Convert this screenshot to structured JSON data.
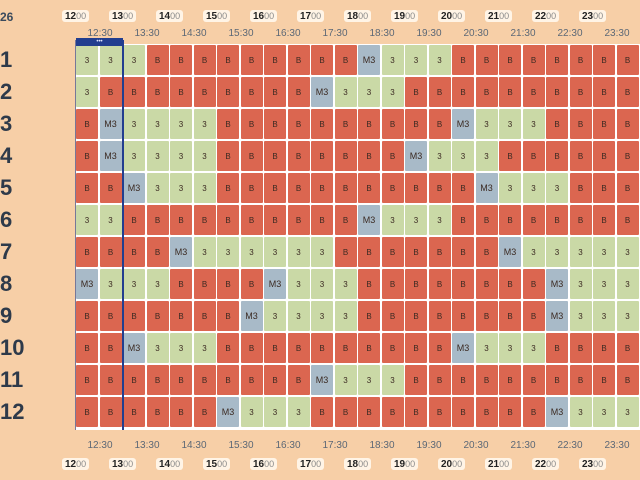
{
  "header": {
    "date_fragment": "26"
  },
  "timeline": {
    "hour_marks": [
      {
        "h": "12",
        "m": "00"
      },
      {
        "h": "13",
        "m": "00"
      },
      {
        "h": "14",
        "m": "00"
      },
      {
        "h": "15",
        "m": "00"
      },
      {
        "h": "16",
        "m": "00"
      },
      {
        "h": "17",
        "m": "00"
      },
      {
        "h": "18",
        "m": "00"
      },
      {
        "h": "19",
        "m": "00"
      },
      {
        "h": "20",
        "m": "00"
      },
      {
        "h": "21",
        "m": "00"
      },
      {
        "h": "22",
        "m": "00"
      },
      {
        "h": "23",
        "m": "00"
      }
    ],
    "half_labels": [
      "12:30",
      "13:30",
      "14:30",
      "15:30",
      "16:30",
      "17:30",
      "18:30",
      "19:30",
      "20:30",
      "21:30",
      "22:30",
      "23:30"
    ],
    "now_badge": "•••"
  },
  "status_colors": {
    "B": "#db6650",
    "3": "#cad9a6",
    "M3": "#a8bac8",
    "now_line": "#223e8f"
  },
  "rooms": [
    {
      "label": "1",
      "slots": [
        "3",
        "3",
        "3",
        "B",
        "B",
        "B",
        "B",
        "B",
        "B",
        "B",
        "B",
        "B",
        "M3",
        "3",
        "3",
        "3",
        "B",
        "B",
        "B",
        "B",
        "B",
        "B",
        "B",
        "B"
      ]
    },
    {
      "label": "2",
      "slots": [
        "3",
        "B",
        "B",
        "B",
        "B",
        "B",
        "B",
        "B",
        "B",
        "B",
        "M3",
        "3",
        "3",
        "3",
        "B",
        "B",
        "B",
        "B",
        "B",
        "B",
        "B",
        "B",
        "B",
        "B"
      ]
    },
    {
      "label": "3",
      "slots": [
        "B",
        "M3",
        "3",
        "3",
        "3",
        "3",
        "B",
        "B",
        "B",
        "B",
        "B",
        "B",
        "B",
        "B",
        "B",
        "B",
        "M3",
        "3",
        "3",
        "3",
        "B",
        "B",
        "B",
        "B"
      ]
    },
    {
      "label": "4",
      "slots": [
        "B",
        "M3",
        "3",
        "3",
        "3",
        "3",
        "B",
        "B",
        "B",
        "B",
        "B",
        "B",
        "B",
        "B",
        "M3",
        "3",
        "3",
        "3",
        "B",
        "B",
        "B",
        "B",
        "B",
        "B"
      ]
    },
    {
      "label": "5",
      "slots": [
        "B",
        "B",
        "M3",
        "3",
        "3",
        "3",
        "B",
        "B",
        "B",
        "B",
        "B",
        "B",
        "B",
        "B",
        "B",
        "B",
        "B",
        "M3",
        "3",
        "3",
        "3",
        "B",
        "B",
        "B"
      ]
    },
    {
      "label": "6",
      "slots": [
        "3",
        "3",
        "B",
        "B",
        "B",
        "B",
        "B",
        "B",
        "B",
        "B",
        "B",
        "B",
        "M3",
        "3",
        "3",
        "3",
        "B",
        "B",
        "B",
        "B",
        "B",
        "B",
        "B",
        "B"
      ]
    },
    {
      "label": "7",
      "slots": [
        "B",
        "B",
        "B",
        "B",
        "M3",
        "3",
        "3",
        "3",
        "3",
        "3",
        "3",
        "B",
        "B",
        "B",
        "B",
        "B",
        "B",
        "B",
        "M3",
        "3",
        "3",
        "3",
        "3",
        "3"
      ]
    },
    {
      "label": "8",
      "slots": [
        "M3",
        "3",
        "3",
        "3",
        "B",
        "B",
        "B",
        "B",
        "M3",
        "3",
        "3",
        "3",
        "B",
        "B",
        "B",
        "B",
        "B",
        "B",
        "B",
        "B",
        "M3",
        "3",
        "3",
        "3"
      ]
    },
    {
      "label": "9",
      "slots": [
        "B",
        "B",
        "B",
        "B",
        "B",
        "B",
        "B",
        "M3",
        "3",
        "3",
        "3",
        "3",
        "B",
        "B",
        "B",
        "B",
        "B",
        "B",
        "B",
        "B",
        "M3",
        "3",
        "3",
        "3"
      ]
    },
    {
      "label": "10",
      "slots": [
        "B",
        "B",
        "M3",
        "3",
        "3",
        "3",
        "B",
        "B",
        "B",
        "B",
        "B",
        "B",
        "B",
        "B",
        "B",
        "B",
        "M3",
        "3",
        "3",
        "3",
        "B",
        "B",
        "B",
        "B"
      ]
    },
    {
      "label": "11",
      "slots": [
        "B",
        "B",
        "B",
        "B",
        "B",
        "B",
        "B",
        "B",
        "B",
        "B",
        "M3",
        "3",
        "3",
        "3",
        "B",
        "B",
        "B",
        "B",
        "B",
        "B",
        "B",
        "B",
        "B",
        "B"
      ]
    },
    {
      "label": "12",
      "slots": [
        "B",
        "B",
        "B",
        "B",
        "B",
        "B",
        "M3",
        "3",
        "3",
        "3",
        "B",
        "B",
        "B",
        "B",
        "B",
        "B",
        "B",
        "B",
        "B",
        "B",
        "M3",
        "3",
        "3",
        "3"
      ]
    }
  ]
}
